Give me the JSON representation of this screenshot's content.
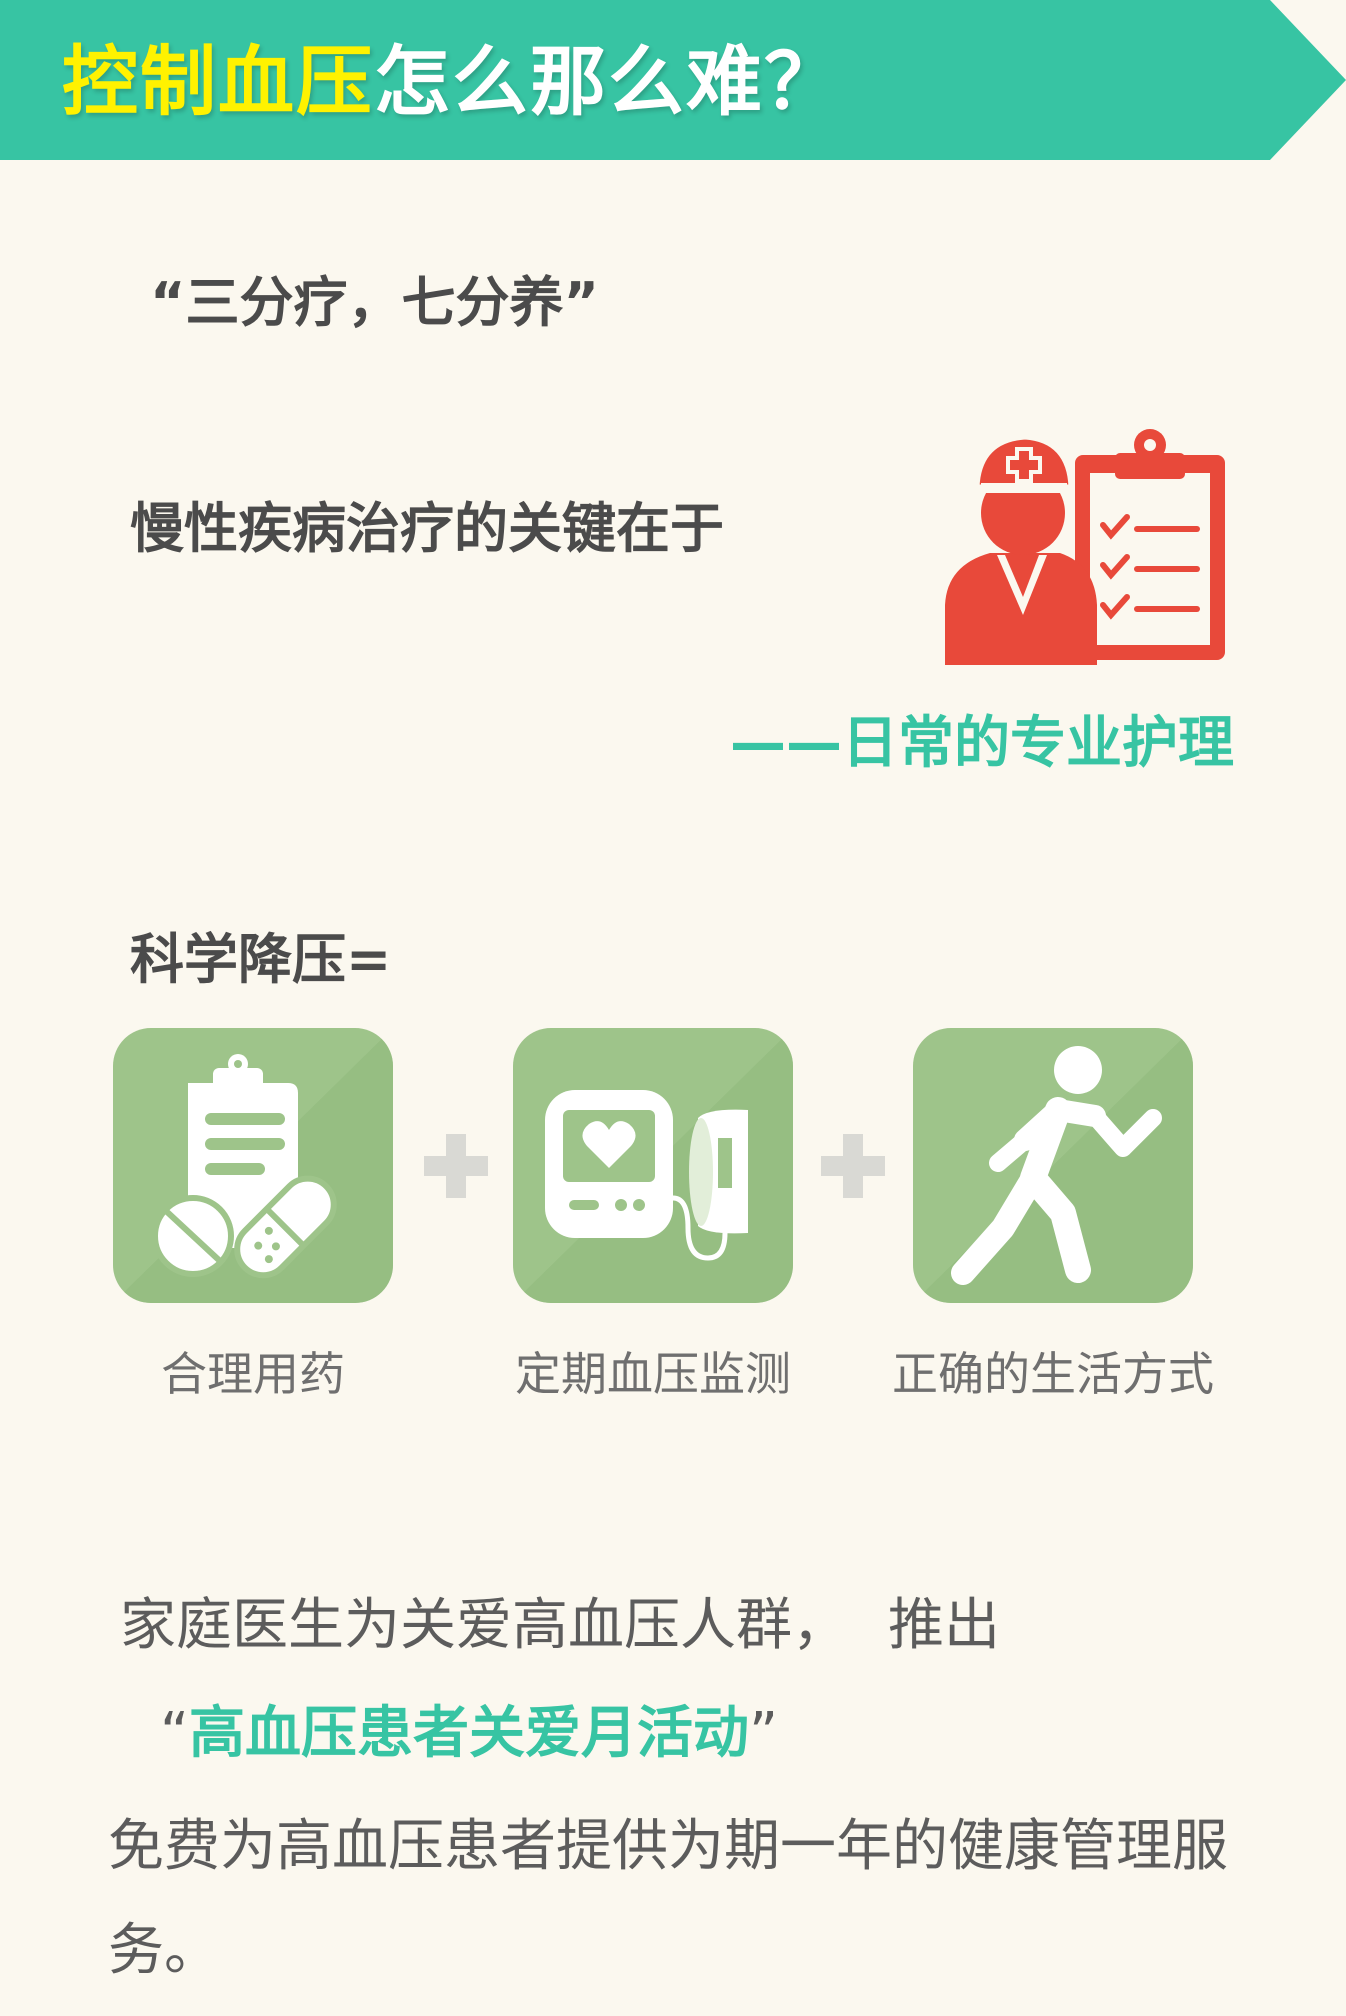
{
  "banner": {
    "title_highlight": "控制血压",
    "title_rest": "怎么那么难？",
    "colors": {
      "background": "#37c4a3",
      "highlight": "#fff200",
      "text": "#ffffff"
    }
  },
  "quote": "“三分疗，七分养”",
  "lead": "慢性疾病治疗的关键在于",
  "answer": "——日常的专业护理",
  "illustration_icon": "nurse-with-clipboard",
  "formula": "科学降压=",
  "tiles": [
    {
      "label": "合理用药",
      "icon": "clipboard-pills"
    },
    {
      "label": "定期血压监测",
      "icon": "blood-pressure-monitor"
    },
    {
      "label": "正确的生活方式",
      "icon": "running-person"
    }
  ],
  "plus_icon": "plus",
  "paragraph1": {
    "text": "家庭医生为关爱高血压人群，",
    "tail": "推出"
  },
  "campaign": {
    "open_quote": "“",
    "name": "高血压患者关爱月活动",
    "close_quote": "”"
  },
  "paragraph2": "免费为高血压患者提供为期一年的健康管理服务。",
  "colors": {
    "accent": "#37c4a3",
    "icon_red": "#e8493a",
    "tile_green": "#9ec48a",
    "page_bg": "#fbf8ef"
  }
}
